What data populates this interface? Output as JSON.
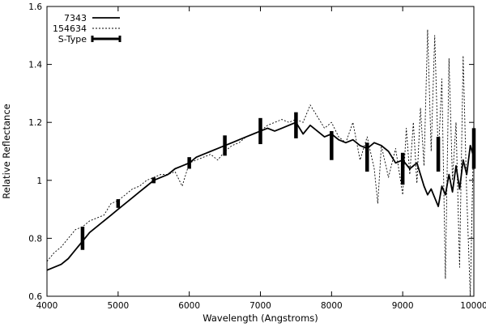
{
  "chart_data": {
    "type": "line",
    "title": "",
    "xlabel": "Wavelength (Angstroms)",
    "ylabel": "Relative Reflectance",
    "xlim": [
      4000,
      10000
    ],
    "ylim": [
      0.6,
      1.6
    ],
    "xticks": [
      4000,
      5000,
      6000,
      7000,
      8000,
      9000,
      10000
    ],
    "yticks": [
      0.6,
      0.8,
      1,
      1.2,
      1.4,
      1.6
    ],
    "ytick_labels": [
      "0.6",
      "0.8",
      "1",
      "1.2",
      "1.4",
      "1.6"
    ],
    "grid": false,
    "legend_position": "top-left",
    "series": [
      {
        "name": "7343",
        "style": "solid",
        "x": [
          4000,
          4100,
          4200,
          4300,
          4400,
          4500,
          4600,
          4700,
          4800,
          4900,
          5000,
          5100,
          5200,
          5300,
          5400,
          5500,
          5600,
          5700,
          5800,
          5900,
          6000,
          6100,
          6200,
          6300,
          6400,
          6500,
          6600,
          6700,
          6800,
          6900,
          7000,
          7100,
          7200,
          7300,
          7400,
          7500,
          7600,
          7700,
          7800,
          7900,
          8000,
          8100,
          8200,
          8300,
          8400,
          8500,
          8600,
          8700,
          8800,
          8900,
          9000,
          9100,
          9200,
          9300,
          9350,
          9400,
          9450,
          9500,
          9550,
          9600,
          9650,
          9700,
          9750,
          9800,
          9850,
          9900,
          9950,
          10000
        ],
        "y": [
          0.69,
          0.7,
          0.71,
          0.73,
          0.76,
          0.79,
          0.82,
          0.84,
          0.86,
          0.88,
          0.9,
          0.92,
          0.94,
          0.96,
          0.98,
          1.0,
          1.01,
          1.02,
          1.04,
          1.05,
          1.06,
          1.08,
          1.09,
          1.1,
          1.11,
          1.12,
          1.13,
          1.14,
          1.15,
          1.16,
          1.17,
          1.18,
          1.17,
          1.18,
          1.19,
          1.2,
          1.16,
          1.19,
          1.17,
          1.15,
          1.16,
          1.14,
          1.13,
          1.14,
          1.12,
          1.11,
          1.13,
          1.12,
          1.1,
          1.06,
          1.07,
          1.04,
          1.06,
          0.98,
          0.95,
          0.97,
          0.94,
          0.91,
          0.98,
          0.95,
          1.02,
          0.96,
          1.05,
          0.97,
          1.07,
          1.02,
          1.12,
          1.08
        ]
      },
      {
        "name": "154634",
        "style": "dotted",
        "x": [
          4000,
          4100,
          4200,
          4300,
          4400,
          4500,
          4600,
          4700,
          4800,
          4900,
          5000,
          5100,
          5200,
          5300,
          5400,
          5500,
          5600,
          5700,
          5800,
          5900,
          6000,
          6100,
          6200,
          6300,
          6400,
          6500,
          6600,
          6700,
          6800,
          6900,
          7000,
          7100,
          7200,
          7300,
          7400,
          7500,
          7600,
          7700,
          7800,
          7900,
          8000,
          8100,
          8200,
          8300,
          8400,
          8500,
          8600,
          8650,
          8700,
          8800,
          8900,
          9000,
          9050,
          9100,
          9150,
          9200,
          9250,
          9300,
          9350,
          9400,
          9450,
          9500,
          9550,
          9600,
          9650,
          9700,
          9750,
          9800,
          9850,
          9900,
          9950,
          10000
        ],
        "y": [
          0.72,
          0.75,
          0.77,
          0.8,
          0.83,
          0.84,
          0.86,
          0.87,
          0.88,
          0.92,
          0.93,
          0.95,
          0.97,
          0.98,
          1.0,
          1.01,
          1.02,
          1.02,
          1.03,
          0.98,
          1.06,
          1.07,
          1.08,
          1.09,
          1.07,
          1.1,
          1.12,
          1.13,
          1.15,
          1.16,
          1.17,
          1.19,
          1.2,
          1.21,
          1.2,
          1.21,
          1.2,
          1.26,
          1.22,
          1.18,
          1.2,
          1.15,
          1.13,
          1.2,
          1.07,
          1.15,
          1.04,
          0.92,
          1.12,
          1.01,
          1.11,
          0.95,
          1.18,
          1.02,
          1.2,
          0.99,
          1.25,
          1.05,
          1.52,
          1.1,
          1.5,
          1.08,
          1.35,
          0.66,
          1.42,
          1.0,
          1.2,
          0.7,
          1.43,
          0.95,
          0.6,
          1.2
        ]
      },
      {
        "name": "S-Type",
        "style": "errorbar",
        "x": [
          4500,
          5000,
          5500,
          6000,
          6500,
          7000,
          7500,
          8000,
          8500,
          9000,
          9500,
          10000
        ],
        "y": [
          0.8,
          0.92,
          1.0,
          1.06,
          1.12,
          1.17,
          1.19,
          1.12,
          1.08,
          1.04,
          1.09,
          1.11
        ],
        "error": [
          0.04,
          0.015,
          0.01,
          0.02,
          0.035,
          0.045,
          0.045,
          0.05,
          0.05,
          0.055,
          0.06,
          0.07
        ]
      }
    ]
  }
}
